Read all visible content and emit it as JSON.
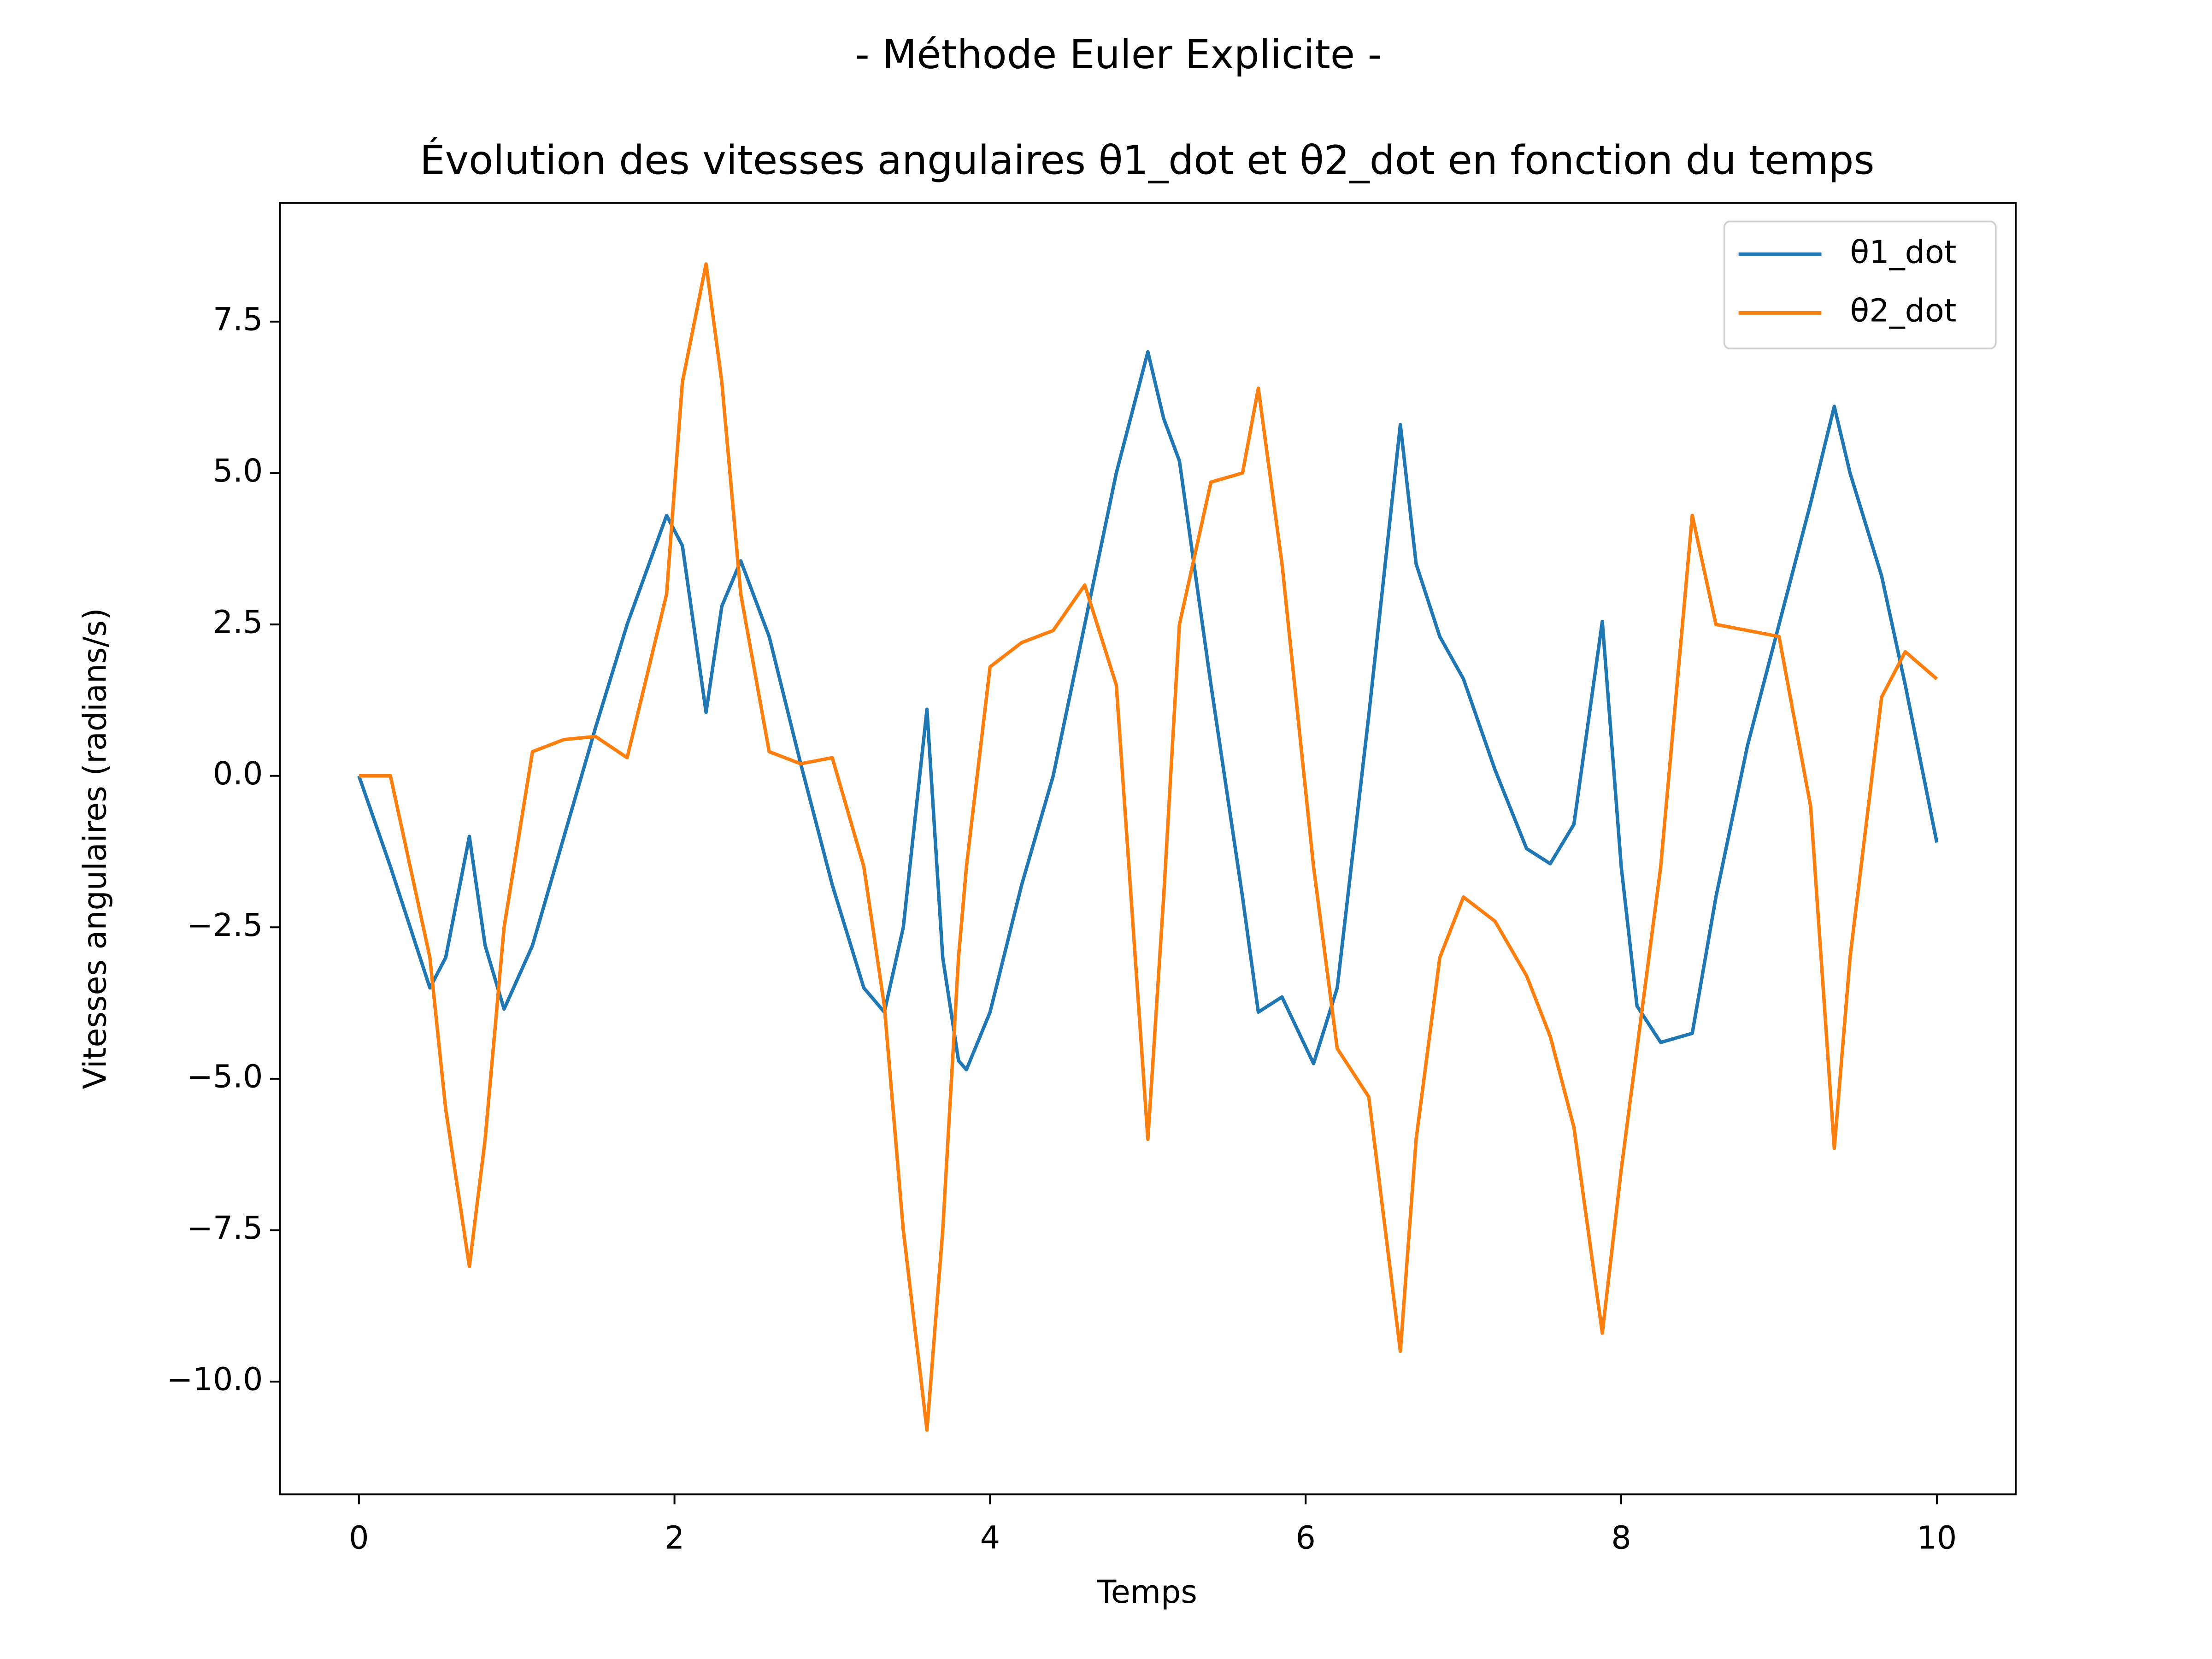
{
  "chart_data": {
    "type": "line",
    "title": "- Méthode Euler Explicite -",
    "subtitle": "Évolution des vitesses angulaires θ1_dot et θ2_dot en fonction du temps",
    "x_label": "Temps",
    "y_label": "Vitesses angulaires (radians/s)",
    "x": [
      0,
      0.2,
      0.45,
      0.55,
      0.7,
      0.8,
      0.92,
      1.1,
      1.3,
      1.5,
      1.7,
      1.95,
      2.05,
      2.2,
      2.3,
      2.42,
      2.6,
      2.8,
      3.0,
      3.2,
      3.33,
      3.45,
      3.6,
      3.7,
      3.8,
      3.85,
      4.0,
      4.2,
      4.4,
      4.6,
      4.8,
      5.0,
      5.1,
      5.2,
      5.4,
      5.6,
      5.7,
      5.85,
      6.05,
      6.2,
      6.4,
      6.6,
      6.7,
      6.85,
      7.0,
      7.2,
      7.4,
      7.55,
      7.7,
      7.88,
      8.0,
      8.1,
      8.25,
      8.45,
      8.6,
      8.8,
      9.0,
      9.2,
      9.35,
      9.45,
      9.65,
      9.8,
      10.0
    ],
    "series": [
      {
        "name": "θ1_dot",
        "color": "#1f77b4",
        "values": [
          0,
          -1.5,
          -3.5,
          -3.0,
          -1.0,
          -2.8,
          -3.85,
          -2.8,
          -1.0,
          0.8,
          2.5,
          4.3,
          3.8,
          1.05,
          2.8,
          3.55,
          2.3,
          0.2,
          -1.8,
          -3.5,
          -3.9,
          -2.5,
          1.1,
          -3.0,
          -4.7,
          -4.85,
          -3.9,
          -1.8,
          0,
          2.5,
          5.0,
          7.0,
          5.9,
          5.2,
          1.5,
          -2.0,
          -3.9,
          -3.65,
          -4.75,
          -3.5,
          1.0,
          5.8,
          3.5,
          2.3,
          1.6,
          0.1,
          -1.2,
          -1.45,
          -0.8,
          2.55,
          -1.5,
          -3.8,
          -4.4,
          -4.25,
          -2.0,
          0.5,
          2.5,
          4.5,
          6.1,
          5.0,
          3.3,
          1.5,
          -1.1
        ]
      },
      {
        "name": "θ2_dot",
        "color": "#ff7f0e",
        "values": [
          0,
          0,
          -3.0,
          -5.5,
          -8.1,
          -6.0,
          -2.5,
          0.4,
          0.6,
          0.65,
          0.3,
          3.0,
          6.5,
          8.45,
          6.5,
          3.0,
          0.4,
          0.2,
          0.3,
          -1.5,
          -3.8,
          -7.5,
          -10.8,
          -7.5,
          -3.0,
          -1.5,
          1.8,
          2.2,
          2.4,
          3.15,
          1.5,
          -6.0,
          -2.0,
          2.5,
          4.85,
          5.0,
          6.4,
          3.5,
          -1.5,
          -4.5,
          -5.3,
          -9.5,
          -6.0,
          -3.0,
          -2.0,
          -2.4,
          -3.3,
          -4.3,
          -5.8,
          -9.2,
          -6.5,
          -4.5,
          -1.5,
          4.3,
          2.5,
          2.4,
          2.3,
          -0.5,
          -6.15,
          -3.0,
          1.3,
          2.05,
          1.6
        ]
      }
    ],
    "xlim": [
      -0.5,
      10.5
    ],
    "ylim": [
      -11.86,
      9.46
    ],
    "xticks": [
      0,
      2,
      4,
      6,
      8,
      10
    ],
    "yticks": [
      {
        "value": -10,
        "label": "−10.0"
      },
      {
        "value": -7.5,
        "label": "−7.5"
      },
      {
        "value": -5,
        "label": "−5.0"
      },
      {
        "value": -2.5,
        "label": "−2.5"
      },
      {
        "value": 0,
        "label": "0.0"
      },
      {
        "value": 2.5,
        "label": "2.5"
      },
      {
        "value": 5,
        "label": "5.0"
      },
      {
        "value": 7.5,
        "label": "7.5"
      }
    ],
    "grid": false,
    "legend": "upper right"
  }
}
